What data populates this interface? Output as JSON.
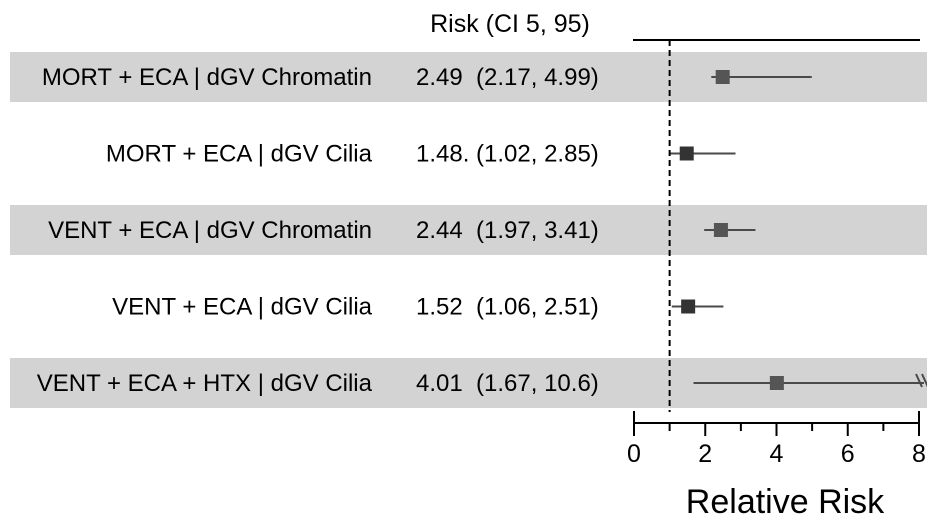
{
  "chart_data": {
    "type": "forest",
    "column_header": "Risk (CI 5, 95)",
    "xlabel": "Relative Risk",
    "xlim": [
      0,
      8
    ],
    "xticks": [
      "0",
      "2",
      "4",
      "6",
      "8"
    ],
    "reference_line": 1,
    "rows": [
      {
        "label": "MORT + ECA | dGV Chromatin",
        "ci_text": "2.49  (2.17, 4.99)",
        "estimate": 2.49,
        "lower": 2.17,
        "upper": 4.99,
        "shaded": true,
        "marker_color": "#555555"
      },
      {
        "label": "MORT + ECA | dGV Cilia",
        "ci_text": "1.48. (1.02, 2.85)",
        "estimate": 1.48,
        "lower": 1.02,
        "upper": 2.85,
        "shaded": false,
        "marker_color": "#333333"
      },
      {
        "label": "VENT + ECA | dGV Chromatin",
        "ci_text": "2.44  (1.97, 3.41)",
        "estimate": 2.44,
        "lower": 1.97,
        "upper": 3.41,
        "shaded": true,
        "marker_color": "#555555"
      },
      {
        "label": "VENT + ECA | dGV Cilia",
        "ci_text": "1.52  (1.06, 2.51)",
        "estimate": 1.52,
        "lower": 1.06,
        "upper": 2.51,
        "shaded": false,
        "marker_color": "#333333"
      },
      {
        "label": "VENT + ECA + HTX | dGV Cilia",
        "ci_text": "4.01  (1.67, 10.6)",
        "estimate": 4.01,
        "lower": 1.67,
        "upper": 10.6,
        "shaded": true,
        "marker_color": "#555555",
        "truncated": true
      }
    ],
    "colors": {
      "band": "#d3d3d3",
      "ci_line": "#4a4a4a",
      "axis": "#000000"
    }
  }
}
